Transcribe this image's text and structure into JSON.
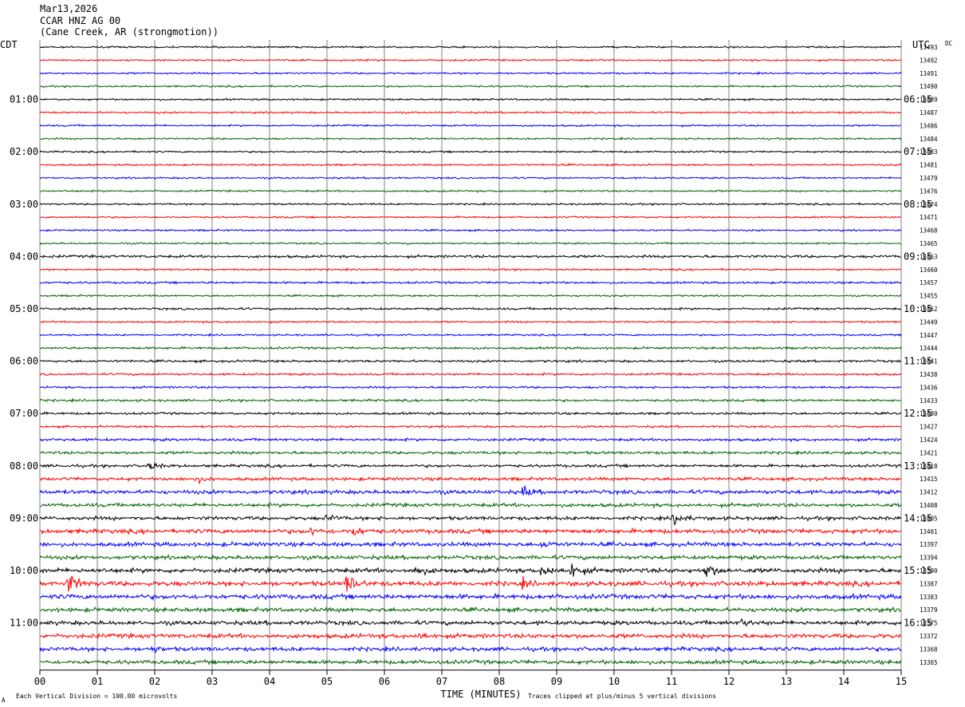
{
  "header": {
    "date": "Mar13,2026",
    "station": "CCAR HNZ AG 00",
    "location": "(Cane Creek, AR (strongmotion))"
  },
  "labels": {
    "left_zone": "CDT",
    "right_zone": "UTC",
    "dc": "DC",
    "footer_left": "Each Vertical Division =  100.00 microvolts",
    "footer_center": "TIME (MINUTES)",
    "footer_right": "Traces clipped at plus/minus 5 vertical divisions",
    "corner_mark": "A"
  },
  "colors": {
    "trace_cycle": [
      "#000000",
      "#ff0000",
      "#0000ff",
      "#006400"
    ],
    "grid": "#808080"
  },
  "chart_data": {
    "type": "line",
    "title": "Mar13,2026 CCAR HNZ AG 00 (Cane Creek, AR (strongmotion))",
    "xlabel": "TIME (MINUTES)",
    "x_ticks": [
      "00",
      "01",
      "02",
      "03",
      "04",
      "05",
      "06",
      "07",
      "08",
      "09",
      "10",
      "11",
      "12",
      "13",
      "14",
      "15"
    ],
    "xlim": [
      0,
      15
    ],
    "left_hour_labels": [
      "01:00",
      "02:00",
      "03:00",
      "04:00",
      "05:00",
      "06:00",
      "07:00",
      "08:00",
      "09:00",
      "10:00",
      "11:00"
    ],
    "right_hour_labels": [
      "06:15",
      "07:15",
      "08:15",
      "09:15",
      "10:15",
      "11:15",
      "12:15",
      "13:15",
      "14:15",
      "15:15",
      "16:15"
    ],
    "dc_offsets": [
      13493,
      13492,
      13491,
      13490,
      13489,
      13487,
      13486,
      13484,
      13483,
      13481,
      13479,
      13476,
      13474,
      13471,
      13468,
      13465,
      13463,
      13460,
      13457,
      13455,
      13452,
      13449,
      13447,
      13444,
      13441,
      13438,
      13436,
      13433,
      13430,
      13427,
      13424,
      13421,
      13418,
      13415,
      13412,
      13408,
      13405,
      13401,
      13397,
      13394,
      13390,
      13387,
      13383,
      13379,
      13375,
      13372,
      13368,
      13365
    ],
    "trace_noise": [
      1,
      1,
      1,
      1,
      1,
      1,
      1,
      1,
      1,
      1,
      1,
      1,
      1,
      1,
      1,
      1,
      1.5,
      1,
      1.2,
      1,
      1.2,
      1,
      1,
      1.3,
      1.3,
      1.2,
      1.2,
      1.3,
      1.3,
      1.2,
      1.5,
      1.6,
      1.6,
      1.8,
      2.2,
      2,
      2,
      2.4,
      2.3,
      2.2,
      2.5,
      2.6,
      2.6,
      2.3,
      2.3,
      2.4,
      2.2,
      2.2
    ],
    "events": [
      {
        "trace": 32,
        "minute": 1.9,
        "amplitude": 5
      },
      {
        "trace": 33,
        "minute": 2.7,
        "amplitude": 4
      },
      {
        "trace": 34,
        "minute": 8.4,
        "amplitude": 6
      },
      {
        "trace": 36,
        "minute": 5.0,
        "amplitude": 4
      },
      {
        "trace": 36,
        "minute": 11.05,
        "amplitude": 9
      },
      {
        "trace": 37,
        "minute": 4.7,
        "amplitude": 4
      },
      {
        "trace": 37,
        "minute": 5.45,
        "amplitude": 6
      },
      {
        "trace": 38,
        "minute": 8.75,
        "amplitude": 4
      },
      {
        "trace": 40,
        "minute": 6.55,
        "amplitude": 6
      },
      {
        "trace": 40,
        "minute": 8.75,
        "amplitude": 9
      },
      {
        "trace": 40,
        "minute": 9.25,
        "amplitude": 10
      },
      {
        "trace": 40,
        "minute": 11.6,
        "amplitude": 9
      },
      {
        "trace": 41,
        "minute": 0.5,
        "amplitude": 14
      },
      {
        "trace": 41,
        "minute": 5.35,
        "amplitude": 12
      },
      {
        "trace": 41,
        "minute": 8.4,
        "amplitude": 4
      },
      {
        "trace": 44,
        "minute": 12.2,
        "amplitude": 4
      },
      {
        "trace": 45,
        "minute": 6.6,
        "amplitude": 4
      },
      {
        "trace": 46,
        "minute": 1.9,
        "amplitude": 4
      }
    ]
  }
}
